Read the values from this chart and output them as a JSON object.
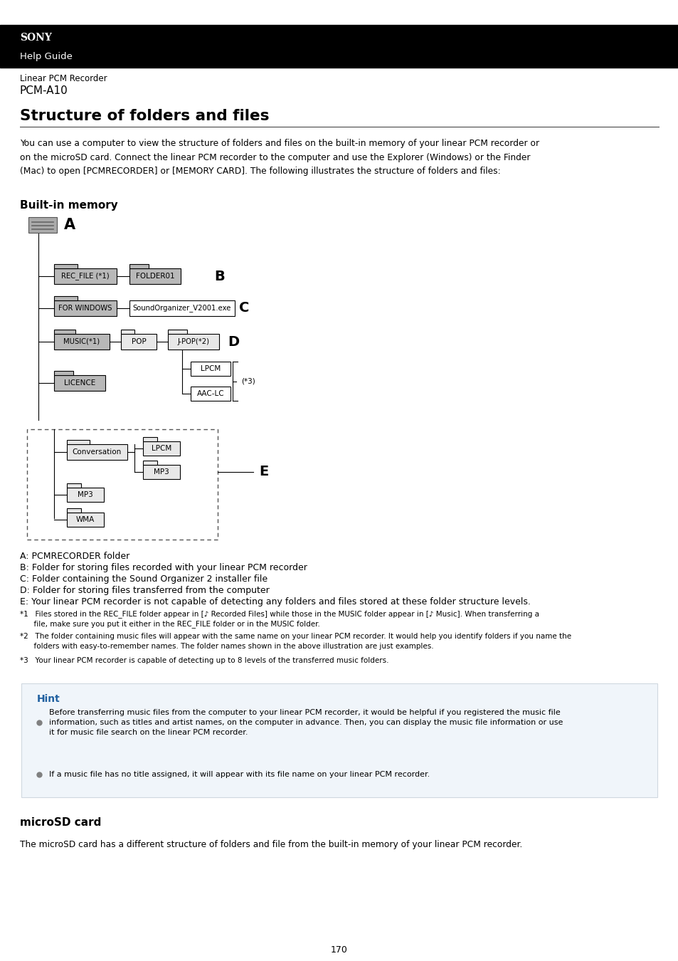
{
  "bg_color": "#ffffff",
  "header_bg": "#000000",
  "header_sony": "SONY",
  "header_guide": "Help Guide",
  "breadcrumb1": "Linear PCM Recorder",
  "breadcrumb2": "PCM-A10",
  "title": "Structure of folders and files",
  "body_text": "You can use a computer to view the structure of folders and files on the built-in memory of your linear PCM recorder or\non the microSD card. Connect the linear PCM recorder to the computer and use the Explorer (Windows) or the Finder\n(Mac) to open [PCMRECORDER] or [MEMORY CARD]. The following illustrates the structure of folders and files:",
  "section1": "Built-in memory",
  "section2": "microSD card",
  "section2_text": "The microSD card has a different structure of folders and file from the built-in memory of your linear PCM recorder.",
  "legend_A": "A: PCMRECORDER folder",
  "legend_B": "B: Folder for storing files recorded with your linear PCM recorder",
  "legend_C": "C: Folder containing the Sound Organizer 2 installer file",
  "legend_D": "D: Folder for storing files transferred from the computer",
  "legend_E": "E: Your linear PCM recorder is not capable of detecting any folders and files stored at these folder structure levels.",
  "note1a": "*1   Files stored in the REC_FILE folder appear in [♪ Recorded Files] while those in the MUSIC folder appear in [♪ Music]. When transferring a",
  "note1b": "      file, make sure you put it either in the REC_FILE folder or in the MUSIC folder.",
  "note2a": "*2   The folder containing music files will appear with the same name on your linear PCM recorder. It would help you identify folders if you name the",
  "note2b": "      folders with easy-to-remember names. The folder names shown in the above illustration are just examples.",
  "note3": "*3   Your linear PCM recorder is capable of detecting up to 8 levels of the transferred music folders.",
  "hint_title": "Hint",
  "hint1": "Before transferring music files from the computer to your linear PCM recorder, it would be helpful if you registered the music file\ninformation, such as titles and artist names, on the computer in advance. Then, you can display the music file information or use\nit for music file search on the linear PCM recorder.",
  "hint2": "If a music file has no title assigned, it will appear with its file name on your linear PCM recorder.",
  "page_num": "170",
  "hint_bg": "#f0f5fa",
  "hint_border": "#d0d8e0",
  "hint_title_color": "#2060a0",
  "hint_bullet_color": "#808080"
}
